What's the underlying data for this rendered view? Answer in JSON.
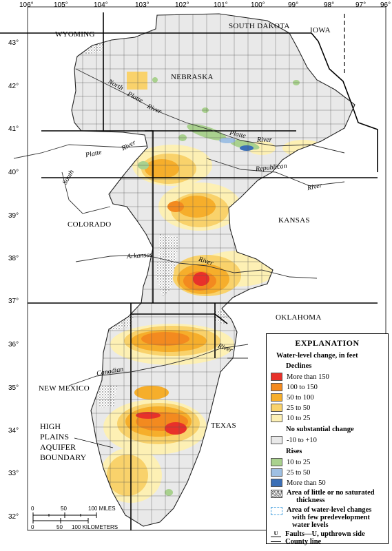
{
  "longitudes": [
    "106°",
    "105°",
    "104°",
    "103°",
    "102°",
    "101°",
    "100°",
    "99°",
    "98°",
    "97°",
    "96°"
  ],
  "latitudes": [
    "43°",
    "42°",
    "41°",
    "40°",
    "39°",
    "38°",
    "37°",
    "36°",
    "35°",
    "34°",
    "33°",
    "32°"
  ],
  "states": {
    "wyoming": "WYOMING",
    "south_dakota": "SOUTH DAKOTA",
    "iowa": "IOWA",
    "nebraska": "NEBRASKA",
    "colorado": "COLORADO",
    "kansas": "KANSAS",
    "oklahoma": "OKLAHOMA",
    "new_mexico": "NEW MEXICO",
    "texas": "TEXAS"
  },
  "rivers": {
    "north": "North",
    "platte1": "Platte",
    "river1": "River",
    "platte2": "Platte",
    "river2": "River",
    "south_river": "River",
    "platte3": "Platte",
    "south": "South",
    "republican": "Republican",
    "river3": "River",
    "arkansas": "Arkansas",
    "river4": "River",
    "river5": "River",
    "canadian": "Canadian"
  },
  "boundary_label": [
    "HIGH",
    "PLAINS",
    "AQUIFER",
    "BOUNDARY"
  ],
  "scale": {
    "miles_ticks": [
      "0",
      "50",
      "100 MILES"
    ],
    "km_ticks": [
      "0",
      "50",
      "100 KILOMETERS"
    ]
  },
  "legend": {
    "title": "EXPLANATION",
    "subtitle": "Water-level change, in feet",
    "declines_heading": "Declines",
    "declines": [
      {
        "label": "More than 150",
        "color": "#e8312a"
      },
      {
        "label": "100 to 150",
        "color": "#f38a1f"
      },
      {
        "label": "50 to 100",
        "color": "#f6ae2b"
      },
      {
        "label": "25 to 50",
        "color": "#f9d26b"
      },
      {
        "label": "10 to 25",
        "color": "#fdf0b4"
      }
    ],
    "no_change_heading": "No substantial change",
    "no_change": {
      "label": "-10 to +10",
      "color": "#e9e9e9"
    },
    "rises_heading": "Rises",
    "rises": [
      {
        "label": "10 to 25",
        "color": "#a9d18e"
      },
      {
        "label": "25 to 50",
        "color": "#9fc0e3"
      },
      {
        "label": "More than 50",
        "color": "#3b6fb6"
      }
    ],
    "little_saturated": [
      "Area of little or no saturated",
      "thickness"
    ],
    "few_predevelopment": [
      "Area of water-level changes",
      "with few predevelopment",
      "water levels"
    ],
    "faults_symbol": "U",
    "faults": "Faults—U, upthrown side",
    "county": "County line"
  }
}
